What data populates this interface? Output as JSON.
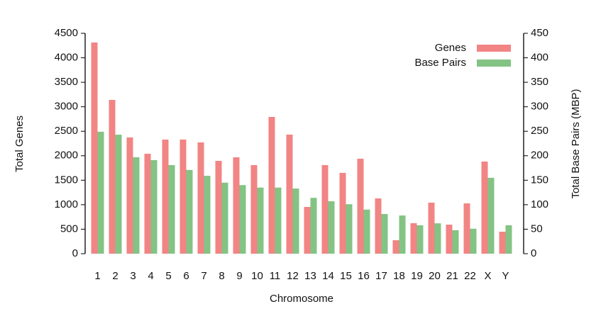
{
  "chart_data": {
    "type": "bar",
    "xlabel": "Chromosome",
    "ylabel": "Total Genes",
    "y2label": "Total Base Pairs (MBP)",
    "categories": [
      "1",
      "2",
      "3",
      "4",
      "5",
      "6",
      "7",
      "8",
      "9",
      "10",
      "11",
      "12",
      "13",
      "14",
      "15",
      "16",
      "17",
      "18",
      "19",
      "20",
      "21",
      "22",
      "X",
      "Y"
    ],
    "series": [
      {
        "name": "Genes",
        "color": "#f06e6e",
        "values": [
          4312,
          3140,
          2373,
          2040,
          2330,
          2330,
          2272,
          1895,
          1968,
          1809,
          2793,
          2431,
          955,
          1809,
          1650,
          1939,
          1129,
          275,
          622,
          1042,
          593,
          1027,
          1881,
          449
        ]
      },
      {
        "name": "Base Pairs",
        "color": "#6db86d",
        "axis": "y2",
        "values": [
          249,
          243,
          197,
          191,
          181,
          171,
          159,
          145,
          140,
          135,
          135,
          133,
          114,
          107,
          101,
          90,
          81,
          78,
          58,
          62,
          48,
          51,
          155,
          58
        ]
      }
    ],
    "ylim": [
      0,
      4500
    ],
    "yticks": [
      0,
      500,
      1000,
      1500,
      2000,
      2500,
      3000,
      3500,
      4000,
      4500
    ],
    "y2lim": [
      0,
      450
    ],
    "y2ticks": [
      0,
      50,
      100,
      150,
      200,
      250,
      300,
      350,
      400,
      450
    ],
    "legend": "top-right"
  }
}
